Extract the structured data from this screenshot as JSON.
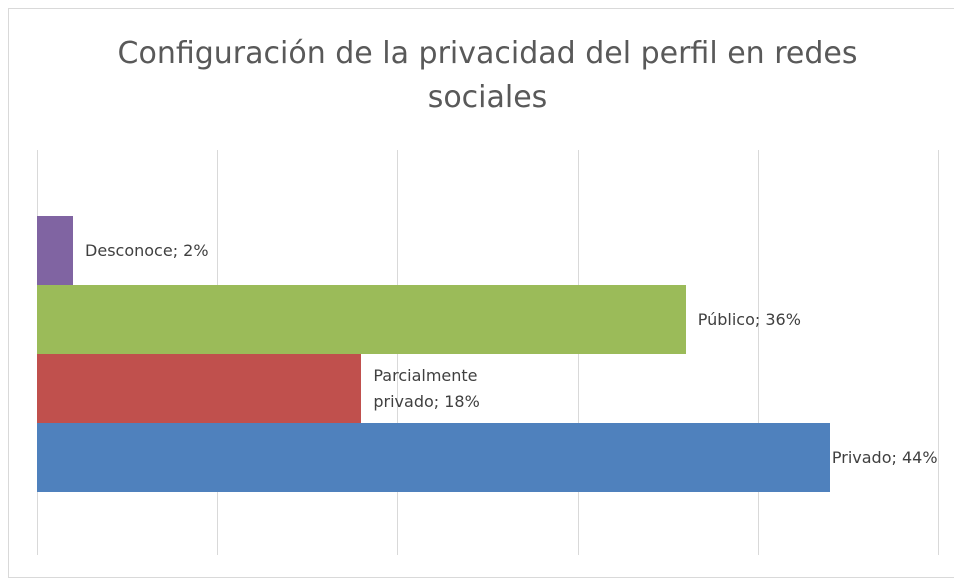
{
  "chart_data": {
    "type": "barh",
    "title": "Configuración de la privacidad del perfil en redes sociales",
    "values": [
      2,
      36,
      18,
      44
    ],
    "value_labels": [
      "Desconoce; 2%",
      "Público; 36%",
      "Parcialmente privado; 18%",
      "Privado; 44%"
    ],
    "colors": [
      "#8064a2",
      "#9bbb59",
      "#c0504d",
      "#4f81bd"
    ],
    "xlim": [
      0,
      50
    ],
    "xticks": [
      0,
      10,
      20,
      30,
      40,
      50
    ],
    "grid": true
  }
}
